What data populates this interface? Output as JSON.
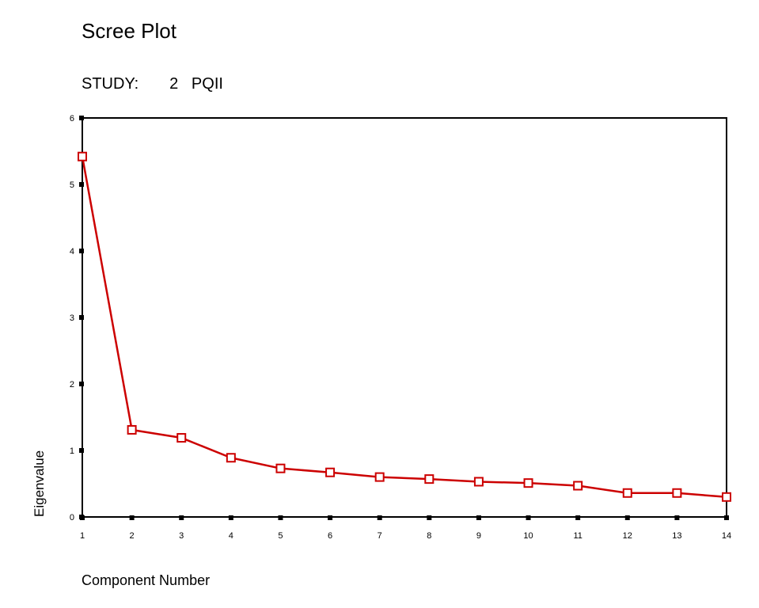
{
  "chart_data": {
    "type": "line",
    "title": "Scree Plot",
    "subtitle": "STUDY:       2   PQII",
    "xlabel": "Component Number",
    "ylabel": "Eigenvalue",
    "x": [
      1,
      2,
      3,
      4,
      5,
      6,
      7,
      8,
      9,
      10,
      11,
      12,
      13,
      14
    ],
    "x_tick_labels": [
      "1",
      "2",
      "3",
      "4",
      "5",
      "6",
      "7",
      "8",
      "9",
      "10",
      "11",
      "12",
      "13",
      "14"
    ],
    "y_tick_labels": [
      "0",
      "1",
      "2",
      "3",
      "4",
      "5",
      "6"
    ],
    "series": [
      {
        "values": [
          5.42,
          1.31,
          1.19,
          0.89,
          0.73,
          0.67,
          0.6,
          0.57,
          0.53,
          0.51,
          0.47,
          0.36,
          0.36,
          0.3
        ]
      }
    ],
    "xlim": [
      1,
      14
    ],
    "ylim": [
      0,
      6
    ],
    "grid": false,
    "legend": "none",
    "marker": "square-open",
    "colors": {
      "series": "#cc0000",
      "axes": "#000000"
    }
  }
}
